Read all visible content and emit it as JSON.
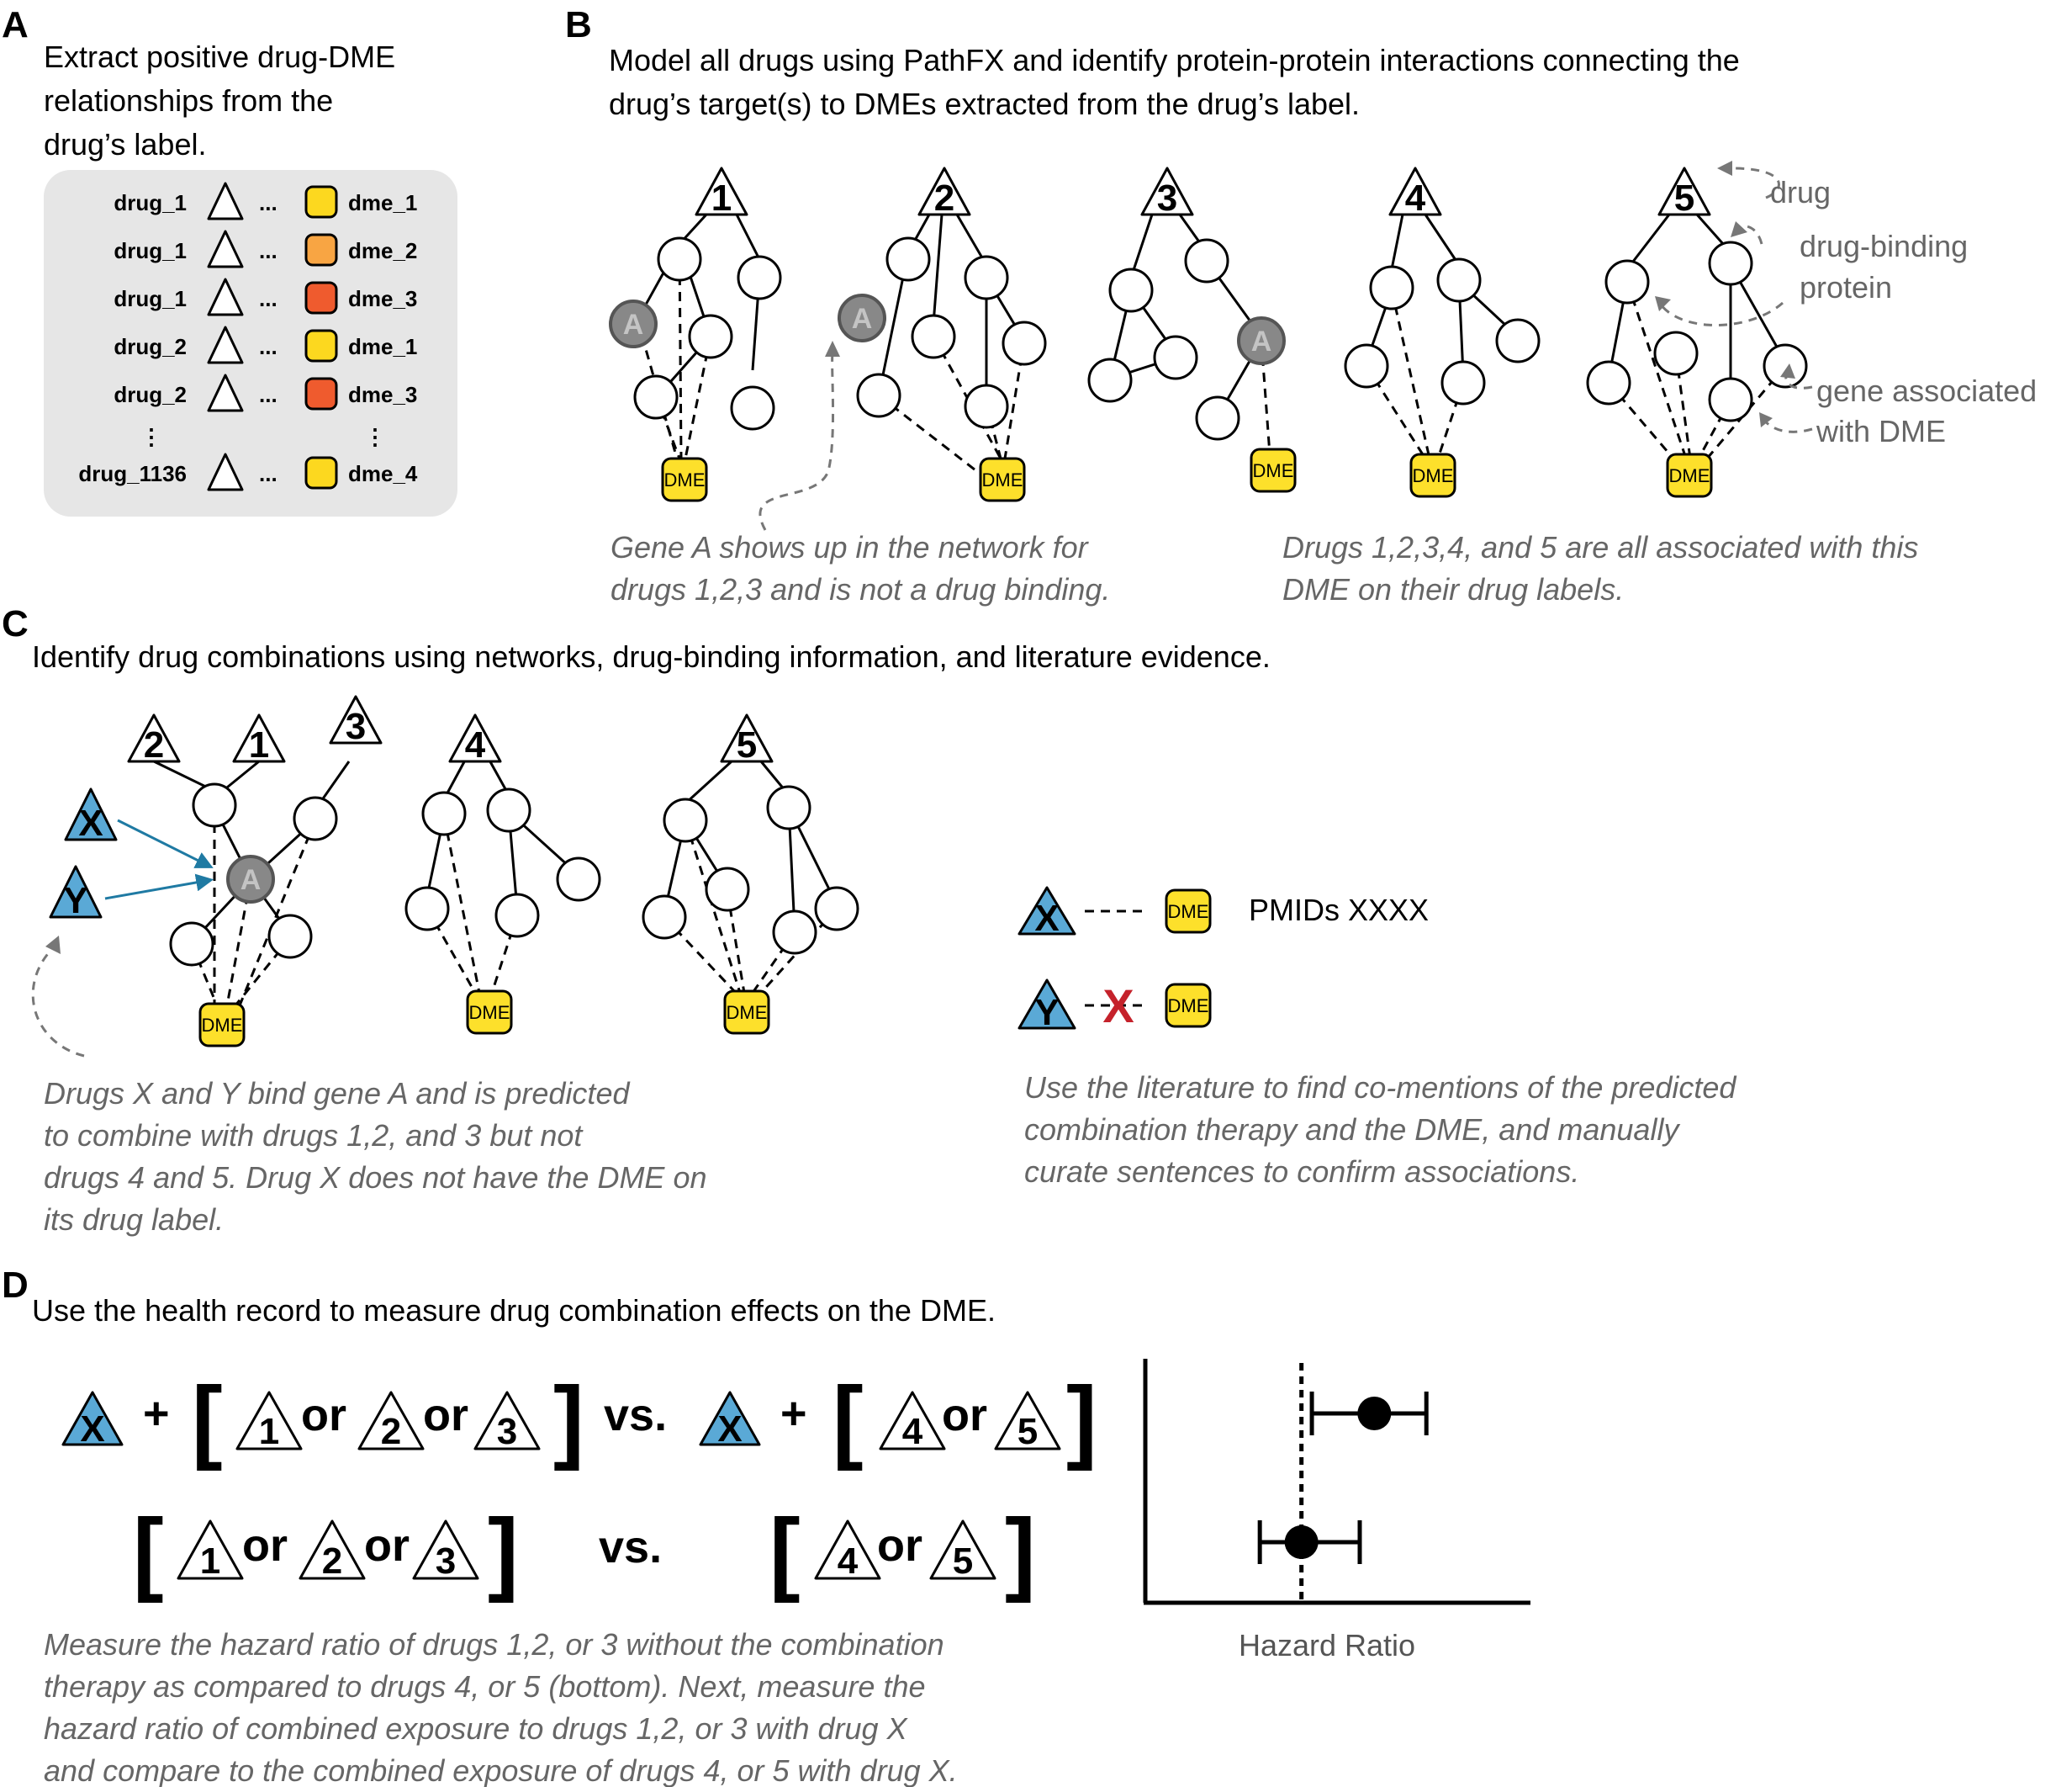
{
  "panels": {
    "a": "A",
    "b": "B",
    "c": "C",
    "d": "D"
  },
  "a": {
    "heading": [
      "Extract positive drug-DME",
      "relationships from the",
      "drug’s label."
    ],
    "rows": [
      {
        "drug": "drug_1",
        "dme": "dme_1",
        "color": "#fcd81f"
      },
      {
        "drug": "drug_1",
        "dme": "dme_2",
        "color": "#f8a543"
      },
      {
        "drug": "drug_1",
        "dme": "dme_3",
        "color": "#ef5b2e"
      },
      {
        "drug": "drug_2",
        "dme": "dme_1",
        "color": "#fcd81f"
      },
      {
        "drug": "drug_2",
        "dme": "dme_3",
        "color": "#ef5b2e"
      },
      {
        "drug": "drug_1136",
        "dme": "dme_4",
        "color": "#fcd81f"
      }
    ],
    "ellipsis": "...",
    "vdots": "⋮"
  },
  "b": {
    "heading": [
      "Model all drugs using PathFX and identify protein-protein interactions connecting the",
      "drug’s target(s) to DMEs extracted from the drug’s label."
    ],
    "drugs": [
      "1",
      "2",
      "3",
      "4",
      "5"
    ],
    "gene": "A",
    "dme": "DME",
    "legend": {
      "drug": "drug",
      "binding": [
        "drug-binding",
        "protein"
      ],
      "gene": [
        "gene associated",
        "with DME"
      ]
    },
    "caption_left": [
      "Gene A shows up in the network for",
      "drugs 1,2,3 and is not a drug binding."
    ],
    "caption_right": [
      "Drugs 1,2,3,4, and 5 are all associated with this",
      "DME on their drug labels."
    ]
  },
  "c": {
    "heading": "Identify drug combinations using networks, drug-binding information, and literature evidence.",
    "drugs": [
      "2",
      "1",
      "3",
      "4",
      "5"
    ],
    "x": "X",
    "y": "Y",
    "gene": "A",
    "dme": "DME",
    "pmids": "PMIDs XXXX",
    "cross": "X",
    "caption_left": [
      "Drugs X and Y bind gene A and is predicted",
      "to combine with drugs 1,2, and 3 but not",
      "drugs 4 and 5. Drug X does not have the DME on",
      "its drug label."
    ],
    "caption_right": [
      "Use the literature to find co-mentions of the predicted",
      "combination therapy and the DME, and manually",
      "curate sentences to confirm associations."
    ]
  },
  "d": {
    "heading": "Use the health record to measure drug combination effects on the DME.",
    "plus": "+",
    "or": "or",
    "vs": "vs.",
    "lb": "[",
    "rb": "]",
    "nums": [
      "1",
      "2",
      "3",
      "4",
      "5"
    ],
    "x": "X",
    "xlabel": "Hazard Ratio",
    "caption": [
      "Measure the hazard ratio of drugs 1,2, or 3 without the combination",
      "therapy as compared to drugs 4, or 5 (bottom). Next, measure the",
      "hazard ratio of combined exposure to drugs 1,2, or 3 with drug X",
      "and compare to the combined exposure of drugs 4, or 5 with drug X."
    ]
  },
  "chart_data": {
    "type": "forest",
    "xlabel": "Hazard Ratio",
    "reference_line": 1,
    "rows": [
      {
        "estimate": 1.35,
        "low": 1.05,
        "high": 1.6
      },
      {
        "estimate": 1.0,
        "low": 0.8,
        "high": 1.28
      }
    ]
  }
}
